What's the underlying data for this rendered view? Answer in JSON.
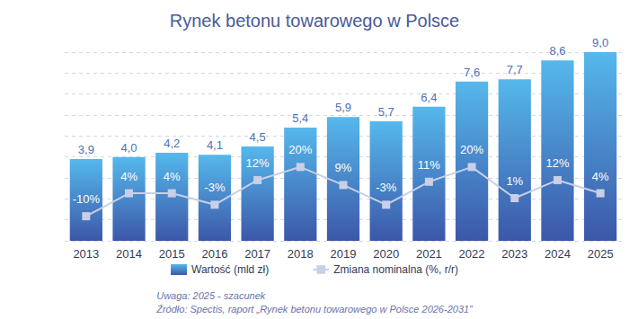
{
  "chart_data": {
    "type": "bar",
    "title": "Rynek betonu towarowego w Polsce",
    "notes": [
      "Uwaga: 2025 - szacunek",
      "Źródło: Spectis, raport „Rynek betonu towarowego w Polsce 2026-2031”"
    ],
    "categories": [
      "2013",
      "2014",
      "2015",
      "2016",
      "2017",
      "2018",
      "2019",
      "2020",
      "2021",
      "2022",
      "2023",
      "2024",
      "2025"
    ],
    "series": [
      {
        "name": "Wartość (mld zł)",
        "type": "bar",
        "color": "#55b8ec",
        "values": [
          3.9,
          4.0,
          4.2,
          4.1,
          4.5,
          5.4,
          5.9,
          5.7,
          6.4,
          7.6,
          7.7,
          8.6,
          9.0
        ],
        "value_labels": [
          "3,9",
          "4,0",
          "4,2",
          "4,1",
          "4,5",
          "5,4",
          "5,9",
          "5,7",
          "6,4",
          "7,6",
          "7,7",
          "8,6",
          "9,0"
        ]
      },
      {
        "name": "Zmiana nominalna (%, r/r)",
        "type": "line",
        "axis": "y2",
        "color": "#c9cfe6",
        "marker": "square",
        "line_style": "solid",
        "values": [
          -10,
          4,
          4,
          -3,
          12,
          20,
          9,
          -3,
          11,
          20,
          1,
          12,
          4
        ],
        "value_labels": [
          "-10%",
          "4%",
          "4%",
          "-3%",
          "12%",
          "20%",
          "9%",
          "-3%",
          "11%",
          "20%",
          "1%",
          "12%",
          "4%"
        ]
      }
    ],
    "ylim": [
      0,
      9
    ],
    "yticks": [
      0,
      1,
      2,
      3,
      4,
      5,
      6,
      7,
      8,
      9
    ],
    "y2lim": [
      -25,
      90
    ],
    "y2ticks": [
      -25,
      90
    ],
    "grid": true,
    "legend": "bottom",
    "data_labels": true,
    "tick_labels": "x"
  }
}
